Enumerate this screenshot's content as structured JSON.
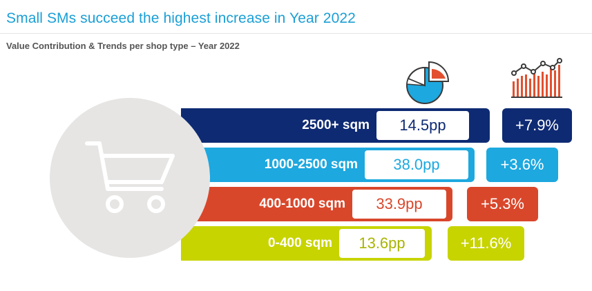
{
  "title": "Small SMs succeed the highest increase in Year 2022",
  "subtitle": "Value Contribution & Trends per shop type – Year 2022",
  "icons": {
    "contribution": "pie-chart-icon",
    "trend": "bar-line-trend-icon",
    "hero": "shopping-cart-icon"
  },
  "rows": [
    {
      "label": "2500+ sqm",
      "contribution": "14.5pp",
      "trend": "+7.9%",
      "color": "#0e2a73"
    },
    {
      "label": "1000-2500 sqm",
      "contribution": "38.0pp",
      "trend": "+3.6%",
      "color": "#1da8df"
    },
    {
      "label": "400-1000 sqm",
      "contribution": "33.9pp",
      "trend": "+5.3%",
      "color": "#d9472b"
    },
    {
      "label": "0-400 sqm",
      "contribution": "13.6pp",
      "trend": "+11.6%",
      "color": "#c8d400"
    }
  ]
}
